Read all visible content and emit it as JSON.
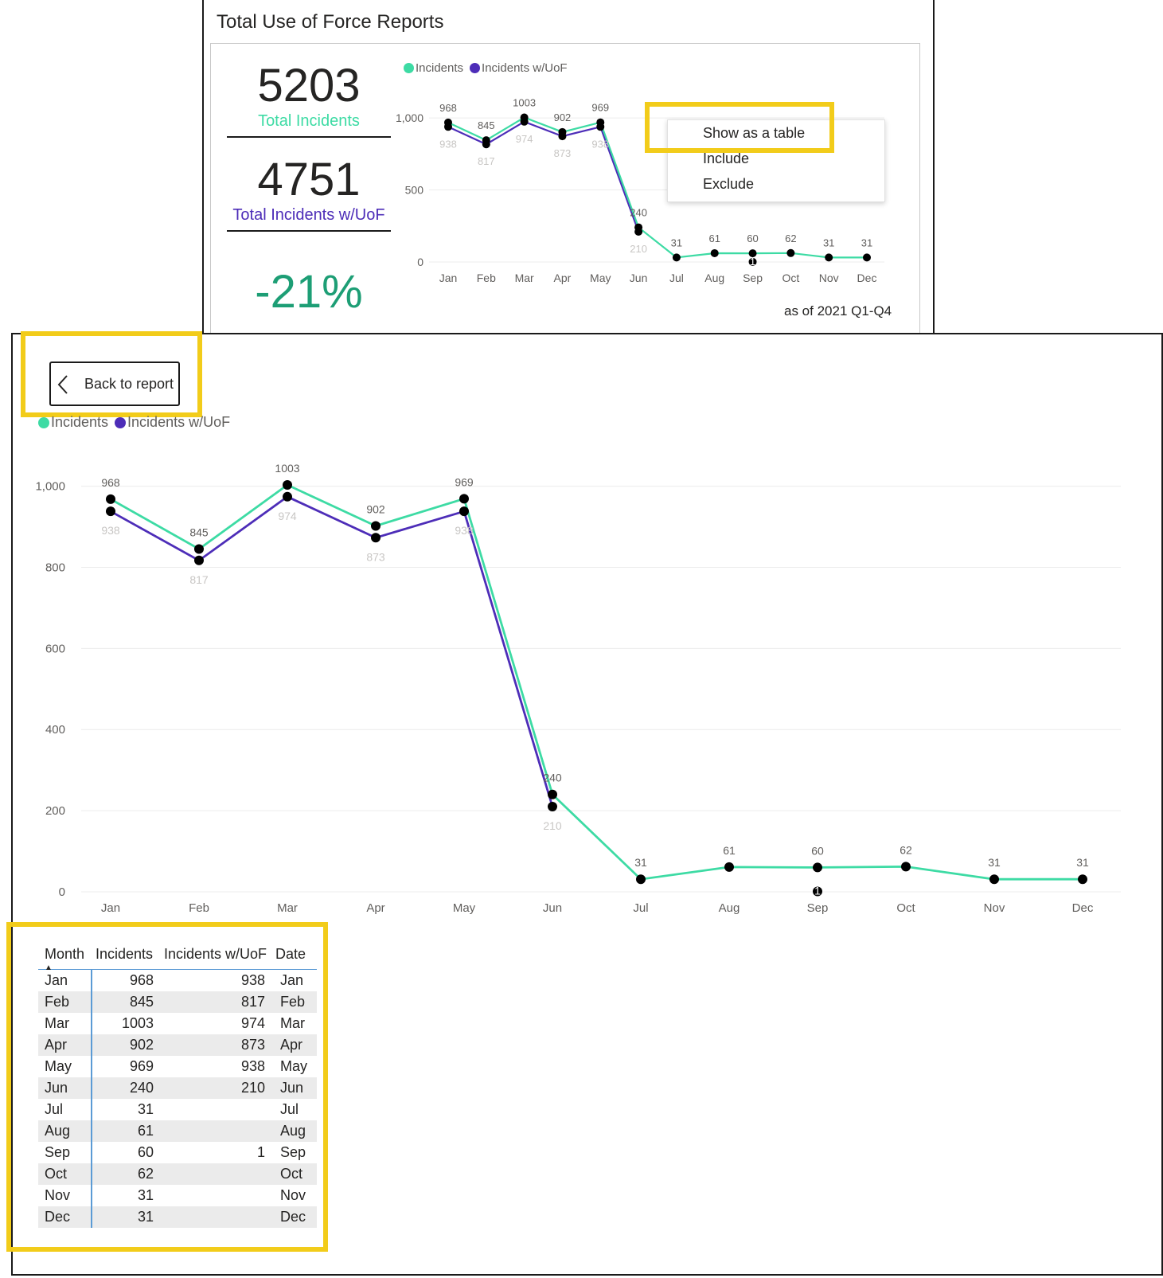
{
  "report": {
    "title": "Total Use of Force Reports",
    "kpi_total_incidents": "5203",
    "kpi_total_incidents_label": "Total Incidents",
    "kpi_total_uof": "4751",
    "kpi_total_uof_label": "Total Incidents w/UoF",
    "kpi_change": "-21%",
    "as_of": "as of 2021 Q1-Q4"
  },
  "context_menu": {
    "items": [
      "Show as a table",
      "Include",
      "Exclude"
    ]
  },
  "focus": {
    "back_label": "Back to report"
  },
  "colors": {
    "incidents": "#3ddba4",
    "uof": "#4d2db8",
    "highlight": "#f2cc1a",
    "kpi_green": "#1d9e75"
  },
  "chart_data": {
    "type": "line",
    "categories": [
      "Jan",
      "Feb",
      "Mar",
      "Apr",
      "May",
      "Jun",
      "Jul",
      "Aug",
      "Sep",
      "Oct",
      "Nov",
      "Dec"
    ],
    "series": [
      {
        "name": "Incidents",
        "values": [
          968,
          845,
          1003,
          902,
          969,
          240,
          31,
          61,
          60,
          62,
          31,
          31
        ]
      },
      {
        "name": "Incidents w/UoF",
        "values": [
          938,
          817,
          974,
          873,
          938,
          210,
          null,
          null,
          1,
          null,
          null,
          null
        ]
      }
    ],
    "legend_position": "top-left",
    "grid": true
  },
  "chart_axes": {
    "top": {
      "ylim": [
        0,
        1100
      ],
      "ticks": [
        "0",
        "500",
        "1,000"
      ],
      "tick_values": [
        0,
        500,
        1000
      ]
    },
    "bottom": {
      "ylim": [
        0,
        1060
      ],
      "ticks": [
        "0",
        "200",
        "400",
        "600",
        "800",
        "1,000"
      ],
      "tick_values": [
        0,
        200,
        400,
        600,
        800,
        1000
      ]
    }
  },
  "table": {
    "headers": [
      "Month",
      "Incidents",
      "Incidents w/UoF",
      "Date"
    ],
    "rows": [
      [
        "Jan",
        "968",
        "938",
        "Jan"
      ],
      [
        "Feb",
        "845",
        "817",
        "Feb"
      ],
      [
        "Mar",
        "1003",
        "974",
        "Mar"
      ],
      [
        "Apr",
        "902",
        "873",
        "Apr"
      ],
      [
        "May",
        "969",
        "938",
        "May"
      ],
      [
        "Jun",
        "240",
        "210",
        "Jun"
      ],
      [
        "Jul",
        "31",
        "",
        "Jul"
      ],
      [
        "Aug",
        "61",
        "",
        "Aug"
      ],
      [
        "Sep",
        "60",
        "1",
        "Sep"
      ],
      [
        "Oct",
        "62",
        "",
        "Oct"
      ],
      [
        "Nov",
        "31",
        "",
        "Nov"
      ],
      [
        "Dec",
        "31",
        "",
        "Dec"
      ]
    ]
  }
}
